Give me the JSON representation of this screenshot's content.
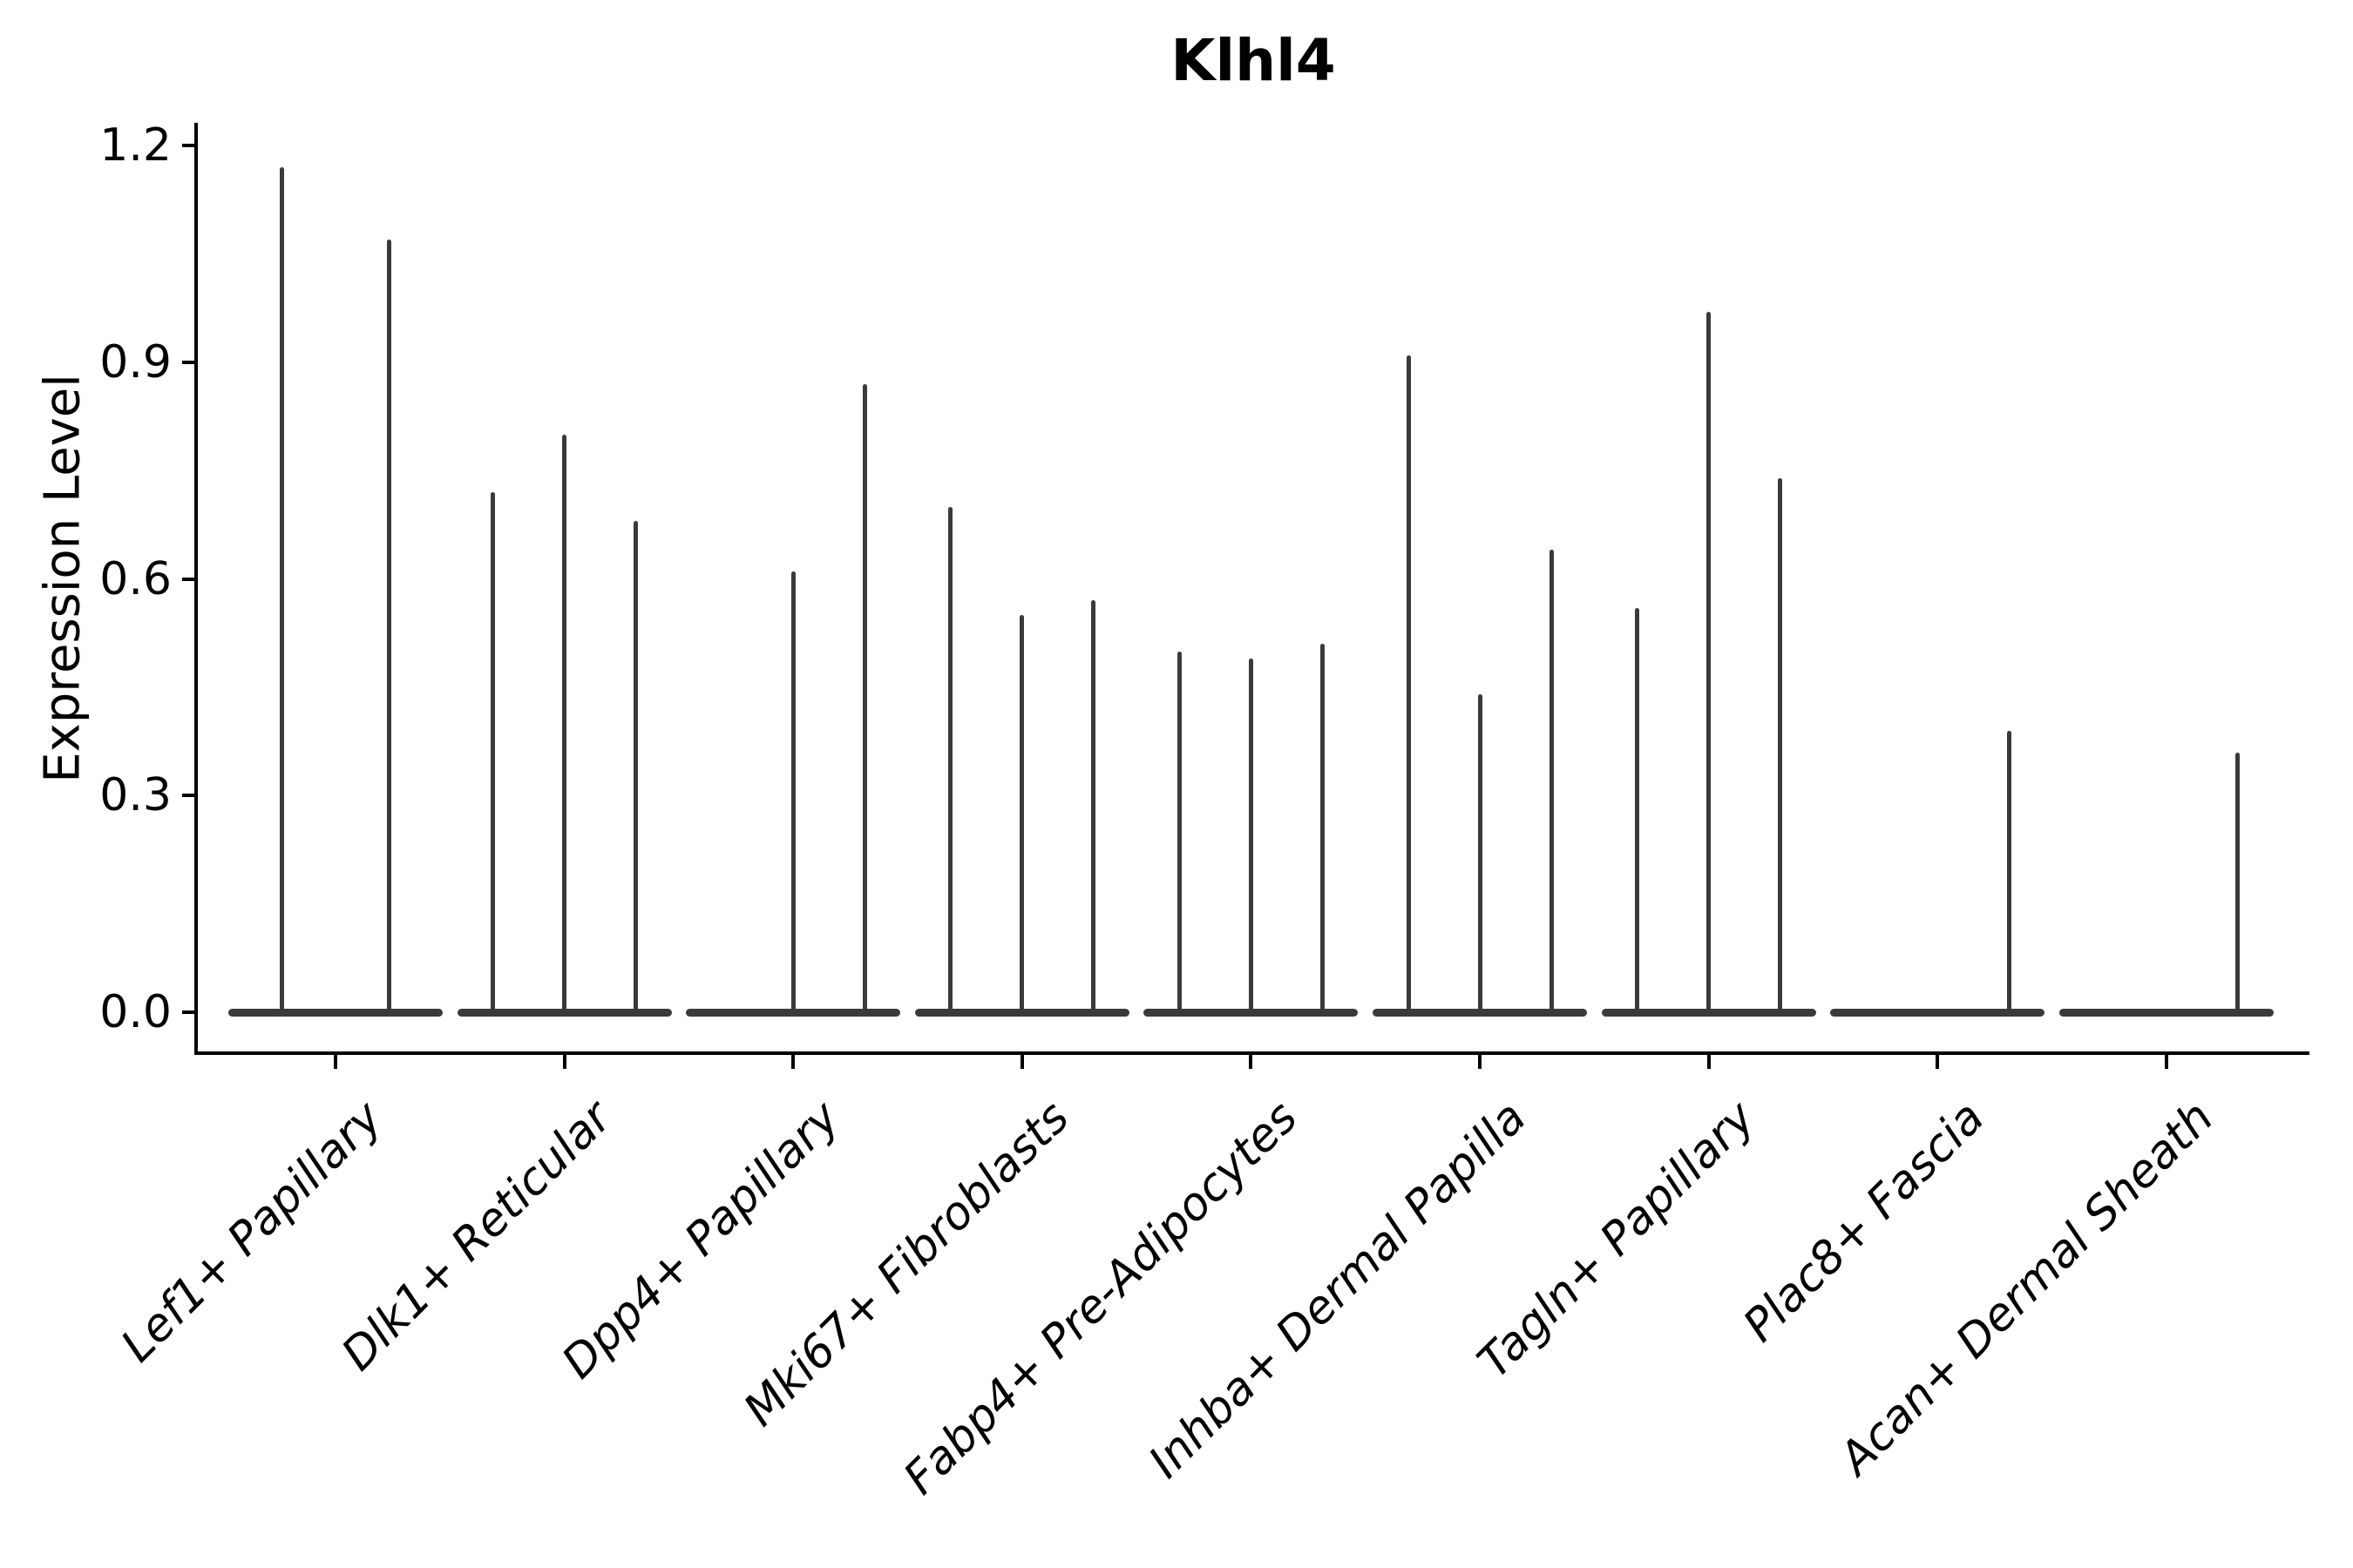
{
  "chart_data": {
    "type": "violin",
    "title": "Klhl4",
    "ylabel": "Expression Level",
    "xlabel": "",
    "grid": false,
    "legend": "none",
    "ylim": [
      0,
      1.26
    ],
    "yticks": [
      0.0,
      0.3,
      0.6,
      0.9,
      1.2
    ],
    "ytick_labels": [
      "0.0",
      "0.3",
      "0.6",
      "0.9",
      "1.2"
    ],
    "categories": [
      "Lef1+ Papillary",
      "Dlk1+ Reticular",
      "Dpp4+ Papillary",
      "Mki67+ Fibroblasts",
      "Fabp4+ Pre-Adipocytes",
      "Inhba+ Dermal Papilla",
      "Tagln+ Papillary",
      "Plac8+ Fascia",
      "Acan+ Dermal Sheath"
    ],
    "groups": [
      {
        "category": "Lef1+ Papillary",
        "violin_maxima": [
          1.17,
          1.07
        ]
      },
      {
        "category": "Dlk1+ Reticular",
        "violin_maxima": [
          0.72,
          0.8,
          0.68
        ]
      },
      {
        "category": "Dpp4+ Papillary",
        "violin_maxima": [
          0.0,
          0.61,
          0.87
        ]
      },
      {
        "category": "Mki67+ Fibroblasts",
        "violin_maxima": [
          0.7,
          0.55,
          0.57
        ]
      },
      {
        "category": "Fabp4+ Pre-Adipocytes",
        "violin_maxima": [
          0.5,
          0.49,
          0.51
        ]
      },
      {
        "category": "Inhba+ Dermal Papilla",
        "violin_maxima": [
          0.91,
          0.44,
          0.64
        ]
      },
      {
        "category": "Tagln+ Papillary",
        "violin_maxima": [
          0.56,
          0.97,
          0.74
        ]
      },
      {
        "category": "Plac8+ Fascia",
        "violin_maxima": [
          0.0,
          0.0,
          0.39
        ]
      },
      {
        "category": "Acan+ Dermal Sheath",
        "violin_maxima": [
          0.0,
          0.0,
          0.36
        ]
      }
    ],
    "violin_color": "#3a3a3a",
    "axis_color": "#000000",
    "background_color": "#ffffff"
  }
}
